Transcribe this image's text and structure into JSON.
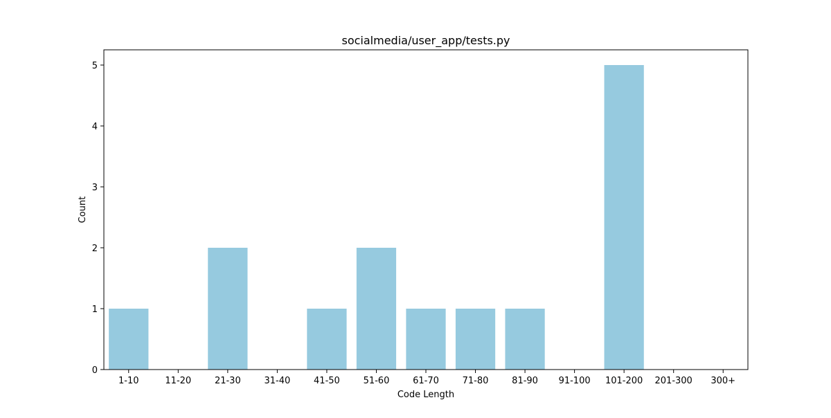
{
  "chart_data": {
    "type": "bar",
    "title": "socialmedia/user_app/tests.py",
    "xlabel": "Code Length",
    "ylabel": "Count",
    "categories": [
      "1-10",
      "11-20",
      "21-30",
      "31-40",
      "41-50",
      "51-60",
      "61-70",
      "71-80",
      "81-90",
      "91-100",
      "101-200",
      "201-300",
      "300+"
    ],
    "values": [
      1,
      0,
      2,
      0,
      1,
      2,
      1,
      1,
      1,
      0,
      5,
      0,
      0
    ],
    "ylim": [
      0,
      5.25
    ],
    "yticks": [
      "0",
      "1",
      "2",
      "3",
      "4",
      "5"
    ],
    "grid": false,
    "bar_color": "#96cadf"
  }
}
